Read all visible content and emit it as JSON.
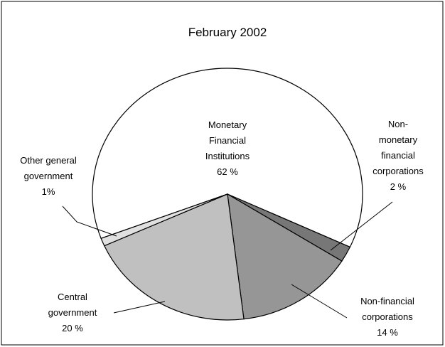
{
  "chart_data": {
    "type": "pie",
    "title": "February 2002",
    "categories": [
      "Monetary\nFinancial\nInstitutions",
      "Non-monetary\nfinancial\ncorporations",
      "Non-financial\ncorporations",
      "Central\ngovernment",
      "Other general\ngovernment"
    ],
    "values": [
      62,
      2,
      14,
      20,
      1
    ],
    "value_labels": [
      "62 %",
      "2 %",
      "14 %",
      "20 %",
      "1%"
    ],
    "colors": [
      "#ffffff",
      "#777777",
      "#969696",
      "#c0c0c0",
      "#e0e0e0"
    ]
  }
}
